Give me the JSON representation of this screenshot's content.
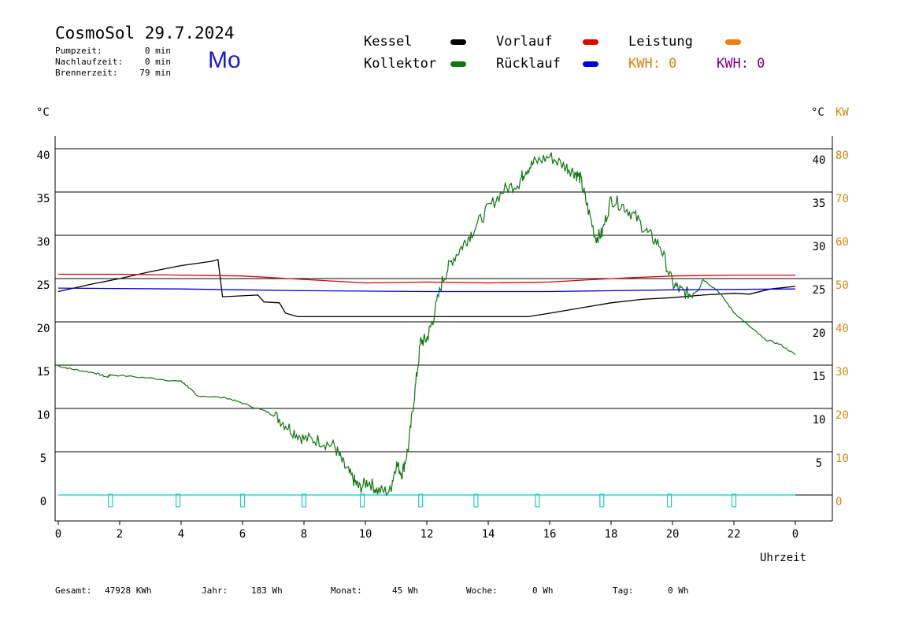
{
  "header": {
    "title": "CosmoSol 29.7.2024",
    "day": "Mo",
    "stats": [
      {
        "label": "Pumpzeit:",
        "value": "0 min"
      },
      {
        "label": "Nachlaufzeit:",
        "value": "0 min"
      },
      {
        "label": "Brennerzeit:",
        "value": "79 min"
      }
    ]
  },
  "legend": {
    "kessel": {
      "label": "Kessel",
      "color": "#000000"
    },
    "kollektor": {
      "label": "Kollektor",
      "color": "#117711"
    },
    "vorlauf": {
      "label": "Vorlauf",
      "color": "#e00000"
    },
    "ruecklauf": {
      "label": "Rücklauf",
      "color": "#0000e0"
    },
    "leistung": {
      "label": "Leistung",
      "color": "#f08010"
    },
    "kwh1": {
      "label": "KWH: 0",
      "color": "#e08010"
    },
    "kwh2": {
      "label": "KWH: 0",
      "color": "#800080"
    }
  },
  "axes": {
    "left_unit": "°C",
    "right_unit": "°C",
    "right_unit2": "KW",
    "xlabel": "Uhrzeit"
  },
  "chart_data": {
    "type": "line",
    "xlim": [
      0,
      24
    ],
    "ylim": [
      0,
      40
    ],
    "kw_lim": [
      0,
      80
    ],
    "x_ticks": [
      "0",
      "2",
      "4",
      "6",
      "8",
      "10",
      "12",
      "14",
      "16",
      "18",
      "20",
      "22",
      "0"
    ],
    "y_ticks_left": [
      "0",
      "5",
      "10",
      "15",
      "20",
      "25",
      "30",
      "35",
      "40"
    ],
    "y_ticks_right": [
      "5",
      "10",
      "15",
      "20",
      "25",
      "30",
      "35",
      "40"
    ],
    "kw_ticks": [
      "0",
      "10",
      "20",
      "30",
      "40",
      "50",
      "60",
      "70",
      "80"
    ],
    "grid": "horizontal",
    "series": [
      {
        "key": "kessel",
        "color": "#000000",
        "points": [
          [
            0,
            23.5
          ],
          [
            1,
            24.3
          ],
          [
            2,
            25
          ],
          [
            3,
            25.8
          ],
          [
            4,
            26.5
          ],
          [
            5,
            27
          ],
          [
            5.2,
            27.2
          ],
          [
            5.35,
            22.9
          ],
          [
            6.5,
            23.1
          ],
          [
            6.7,
            22.3
          ],
          [
            7.2,
            22.2
          ],
          [
            7.4,
            21
          ],
          [
            7.8,
            20.6
          ],
          [
            10,
            20.6
          ],
          [
            12,
            20.6
          ],
          [
            15.3,
            20.6
          ],
          [
            16,
            21
          ],
          [
            17,
            21.6
          ],
          [
            18,
            22.2
          ],
          [
            19,
            22.6
          ],
          [
            20,
            22.8
          ],
          [
            21,
            23.1
          ],
          [
            22,
            23.3
          ],
          [
            22.5,
            23.2
          ],
          [
            23.2,
            23.8
          ],
          [
            24,
            24.1
          ]
        ]
      },
      {
        "key": "kollektor",
        "color": "#117711",
        "points": [
          [
            0,
            14.9
          ],
          [
            0.5,
            14.5
          ],
          [
            1.2,
            14.1
          ],
          [
            1.6,
            13.6
          ],
          [
            1.7,
            13.9
          ],
          [
            3,
            13.5
          ],
          [
            4,
            13.1
          ],
          [
            4.2,
            12.6
          ],
          [
            4.5,
            11.5
          ],
          [
            5.5,
            11.2
          ],
          [
            6,
            10.6
          ],
          [
            6.8,
            9.6
          ],
          [
            7.2,
            8.8
          ],
          [
            7.6,
            7.5
          ],
          [
            8,
            6.5
          ],
          [
            8.5,
            6.3
          ],
          [
            9,
            5.6
          ],
          [
            9.3,
            3.4
          ],
          [
            9.6,
            1.8
          ],
          [
            9.8,
            0.8
          ],
          [
            10.1,
            1.6
          ],
          [
            10.4,
            0.5
          ],
          [
            10.8,
            0.4
          ],
          [
            11,
            3.6
          ],
          [
            11.2,
            2.5
          ],
          [
            11.4,
            5.5
          ],
          [
            11.6,
            11.6
          ],
          [
            11.8,
            17.7
          ],
          [
            12,
            18
          ],
          [
            12.2,
            20.3
          ],
          [
            12.5,
            24.7
          ],
          [
            12.8,
            27
          ],
          [
            13.2,
            29
          ],
          [
            13.5,
            30.5
          ],
          [
            14,
            33.1
          ],
          [
            14.5,
            35.2
          ],
          [
            15,
            36.1
          ],
          [
            15.2,
            37.5
          ],
          [
            15.5,
            38.4
          ],
          [
            16,
            39.1
          ],
          [
            16.5,
            38
          ],
          [
            16.8,
            37.3
          ],
          [
            17,
            36.6
          ],
          [
            17.2,
            33.7
          ],
          [
            17.5,
            29.7
          ],
          [
            17.7,
            30.2
          ],
          [
            18,
            34.2
          ],
          [
            18.4,
            33.4
          ],
          [
            18.8,
            32.1
          ],
          [
            19.2,
            30.2
          ],
          [
            19.6,
            28.8
          ],
          [
            20,
            24.4
          ],
          [
            20.3,
            23.5
          ],
          [
            20.6,
            23.2
          ],
          [
            21,
            24.9
          ],
          [
            21.5,
            23.5
          ],
          [
            22,
            21.1
          ],
          [
            22.5,
            19.5
          ],
          [
            23,
            18
          ],
          [
            23.5,
            17.4
          ],
          [
            24,
            16.2
          ]
        ]
      },
      {
        "key": "vorlauf",
        "color": "#e00000",
        "points": [
          [
            0,
            25.5
          ],
          [
            2,
            25.5
          ],
          [
            4,
            25.4
          ],
          [
            6,
            25.3
          ],
          [
            8,
            24.9
          ],
          [
            10,
            24.5
          ],
          [
            12,
            24.6
          ],
          [
            14,
            24.5
          ],
          [
            16,
            24.6
          ],
          [
            18,
            25
          ],
          [
            20,
            25.3
          ],
          [
            22,
            25.4
          ],
          [
            24,
            25.4
          ]
        ]
      },
      {
        "key": "ruecklauf",
        "color": "#0000e0",
        "points": [
          [
            0,
            23.9
          ],
          [
            4,
            23.8
          ],
          [
            6,
            23.7
          ],
          [
            8,
            23.6
          ],
          [
            12,
            23.5
          ],
          [
            16,
            23.5
          ],
          [
            20,
            23.7
          ],
          [
            24,
            23.8
          ]
        ]
      }
    ],
    "pump_marker_hours": [
      1.7,
      3.9,
      6,
      8,
      9.9,
      11.8,
      13.6,
      15.6,
      17.7,
      19.9,
      22
    ]
  },
  "footer": [
    {
      "label": "Gesamt:",
      "value": "47928 KWh"
    },
    {
      "label": "Jahr:",
      "value": "183 Wh"
    },
    {
      "label": "Monat:",
      "value": "45 Wh"
    },
    {
      "label": "Woche:",
      "value": "0 Wh"
    },
    {
      "label": "Tag:",
      "value": "0 Wh"
    }
  ]
}
